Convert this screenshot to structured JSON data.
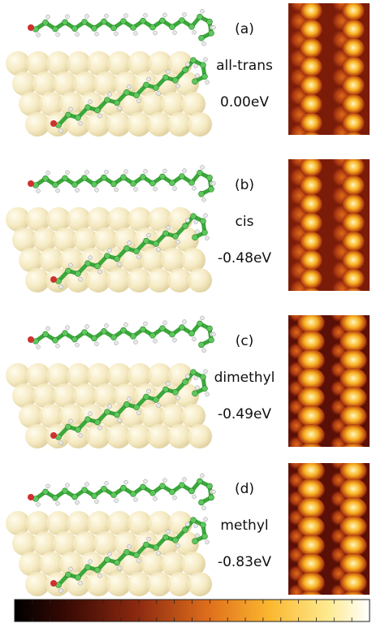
{
  "panels": [
    {
      "label": "(a)",
      "name": "all-trans",
      "energy": "0.00eV"
    },
    {
      "label": "(b)",
      "name": "cis",
      "energy": "-0.48eV"
    },
    {
      "label": "(c)",
      "name": "dimethyl",
      "energy": "-0.49eV"
    },
    {
      "label": "(d)",
      "name": "methyl",
      "energy": "-0.83eV"
    }
  ]
}
